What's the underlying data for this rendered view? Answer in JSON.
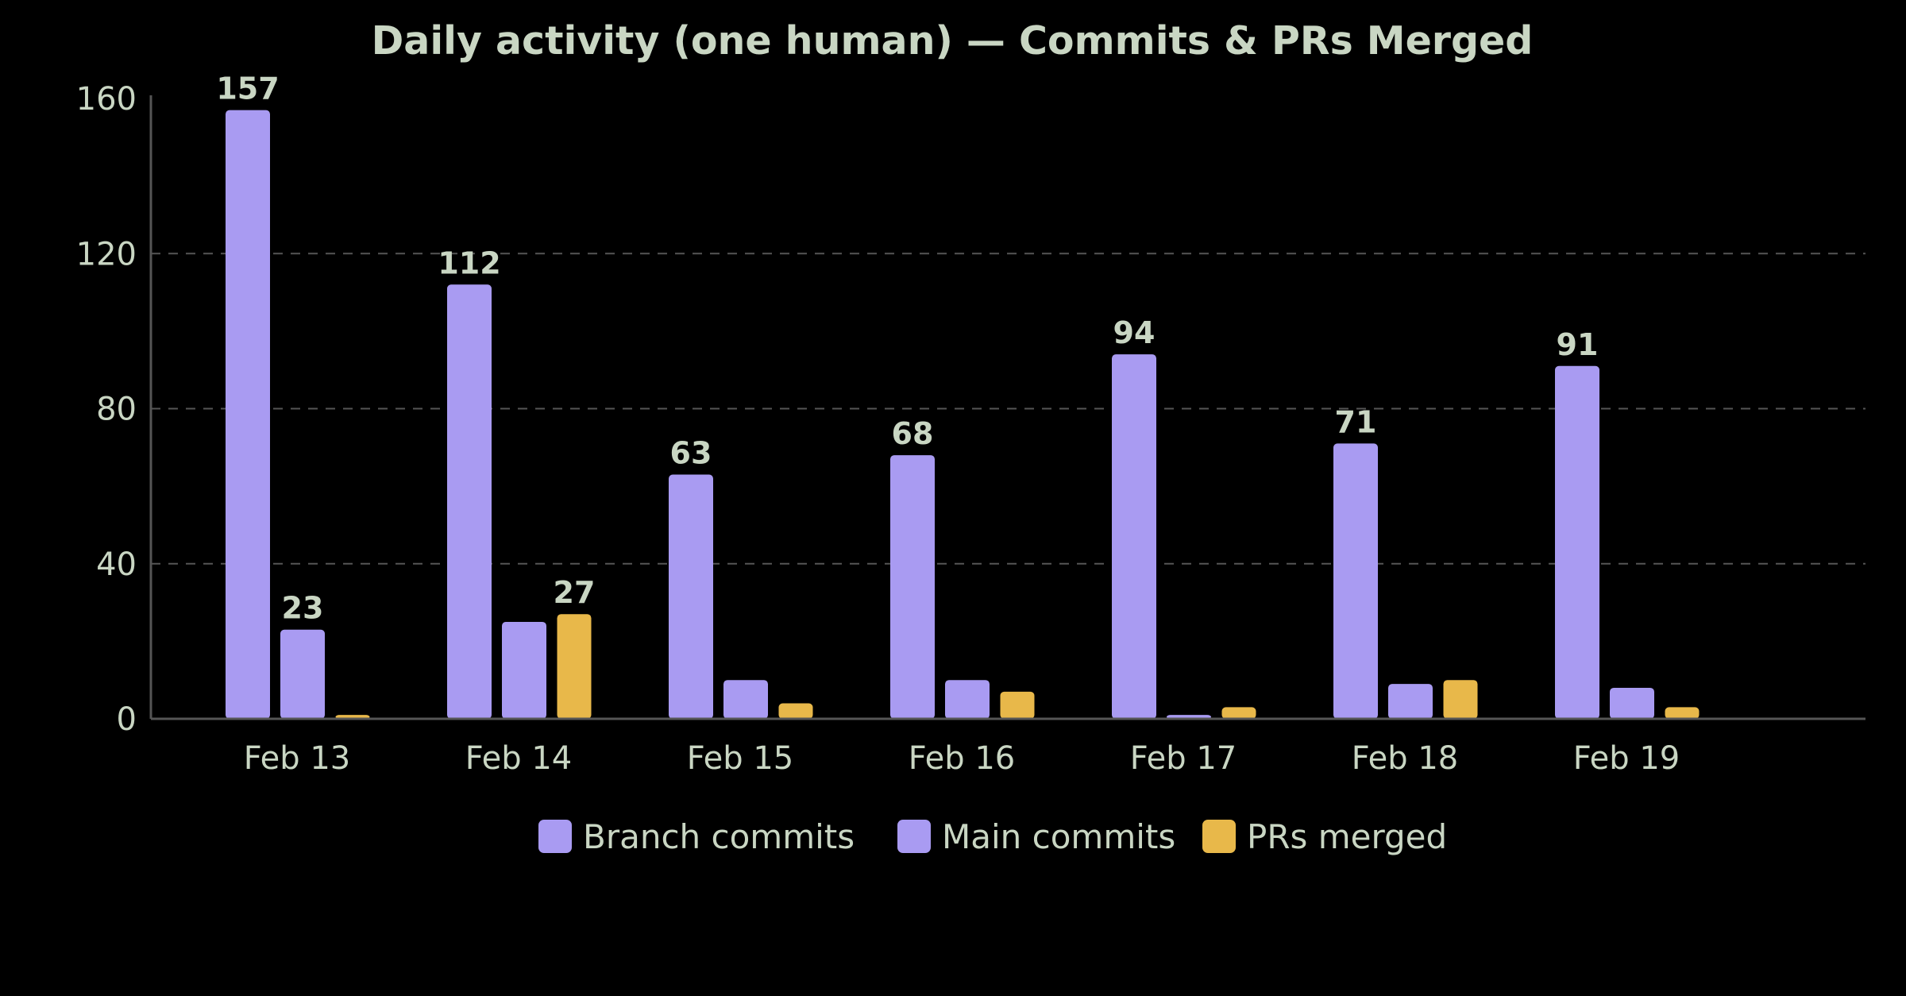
{
  "chart_data": {
    "type": "bar",
    "title": "Daily activity (one human) — Commits & PRs Merged",
    "xlabel": "",
    "ylabel": "",
    "ylim": [
      0,
      160
    ],
    "yticks": [
      0,
      40,
      80,
      120,
      160
    ],
    "grid": true,
    "legend_position": "bottom-center",
    "categories": [
      "Feb 13",
      "Feb 14",
      "Feb 15",
      "Feb 16",
      "Feb 17",
      "Feb 18",
      "Feb 19"
    ],
    "series": [
      {
        "name": "Branch commits",
        "color": "#a99bf2",
        "values": [
          157,
          112,
          63,
          68,
          94,
          71,
          91
        ],
        "labels": [
          "157",
          "112",
          "63",
          "68",
          "94",
          "71",
          "91"
        ]
      },
      {
        "name": "Main commits",
        "color": "#a99bf2",
        "values": [
          23,
          25,
          10,
          10,
          1,
          9,
          8
        ],
        "labels": [
          "23",
          "",
          "",
          "",
          "",
          "",
          ""
        ]
      },
      {
        "name": "PRs merged",
        "color": "#e8b84a",
        "values": [
          1,
          27,
          4,
          7,
          3,
          10,
          3
        ],
        "labels": [
          "",
          "27",
          "",
          "",
          "",
          "",
          ""
        ]
      }
    ]
  },
  "colors": {
    "text": "#c9d6c3",
    "axis": "#555555",
    "grid": "#555555",
    "background": "#000000"
  }
}
